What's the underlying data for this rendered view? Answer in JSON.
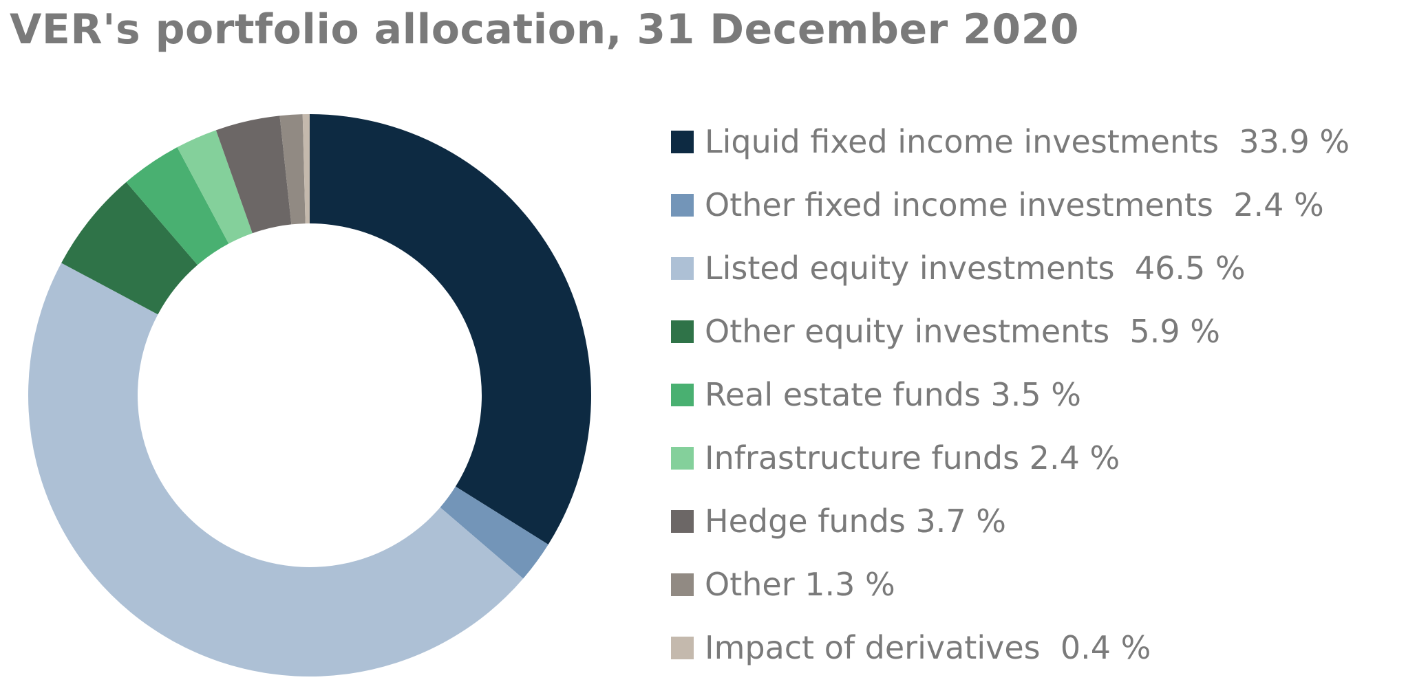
{
  "chart_data": {
    "type": "pie",
    "variant": "donut",
    "title": "VER's portfolio allocation, 31 December 2020",
    "legend_position": "right",
    "unit": "%",
    "slices": [
      {
        "label": "Liquid fixed income investments  33.9 %",
        "category": "Liquid fixed income investments",
        "value": 33.9,
        "color": "#0d2a42"
      },
      {
        "label": "Other fixed income investments  2.4 %",
        "category": "Other fixed income investments",
        "value": 2.4,
        "color": "#7395b8"
      },
      {
        "label": "Listed equity investments  46.5 %",
        "category": "Listed equity investments",
        "value": 46.5,
        "color": "#adc0d5"
      },
      {
        "label": "Other equity investments  5.9 %",
        "category": "Other equity investments",
        "value": 5.9,
        "color": "#2f7348"
      },
      {
        "label": "Real estate funds 3.5 %",
        "category": "Real estate funds",
        "value": 3.5,
        "color": "#49b071"
      },
      {
        "label": "Infrastructure funds 2.4 %",
        "category": "Infrastructure funds",
        "value": 2.4,
        "color": "#84d09b"
      },
      {
        "label": "Hedge funds 3.7 %",
        "category": "Hedge funds",
        "value": 3.7,
        "color": "#6c6766"
      },
      {
        "label": "Other 1.3 %",
        "category": "Other",
        "value": 1.3,
        "color": "#918a83"
      },
      {
        "label": "Impact of derivatives  0.4 %",
        "category": "Impact of derivatives",
        "value": 0.4,
        "color": "#c4b9ad"
      }
    ]
  }
}
